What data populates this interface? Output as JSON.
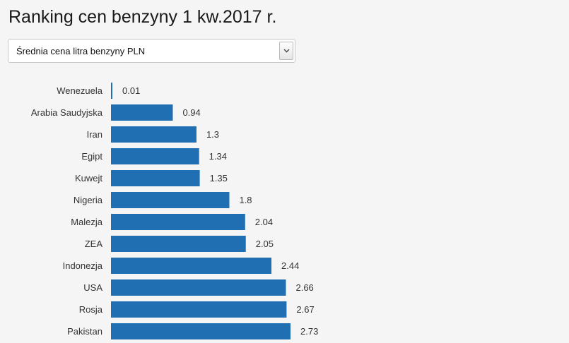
{
  "title": "Ranking cen benzyny 1 kw.2017 r.",
  "dropdown": {
    "selected": "Średnia cena litra benzyny PLN",
    "icon": "chevron-down-icon"
  },
  "colors": {
    "bar": "#1f6fb2",
    "background": "#f5f5f5"
  },
  "chart_data": {
    "type": "bar",
    "orientation": "horizontal",
    "categories": [
      "Wenezuela",
      "Arabia Saudyjska",
      "Iran",
      "Egipt",
      "Kuwejt",
      "Nigeria",
      "Malezja",
      "ZEA",
      "Indonezja",
      "USA",
      "Rosja",
      "Pakistan"
    ],
    "values": [
      0.01,
      0.94,
      1.3,
      1.34,
      1.35,
      1.8,
      2.04,
      2.05,
      2.44,
      2.66,
      2.67,
      2.73
    ],
    "value_labels": [
      "0.01",
      "0.94",
      "1.3",
      "1.34",
      "1.35",
      "1.8",
      "2.04",
      "2.05",
      "2.44",
      "2.66",
      "2.67",
      "2.73"
    ],
    "title": "Ranking cen benzyny 1 kw.2017 r.",
    "xlabel": "",
    "ylabel": "",
    "xlim": [
      0,
      2.73
    ],
    "grid": false,
    "legend": "none"
  }
}
